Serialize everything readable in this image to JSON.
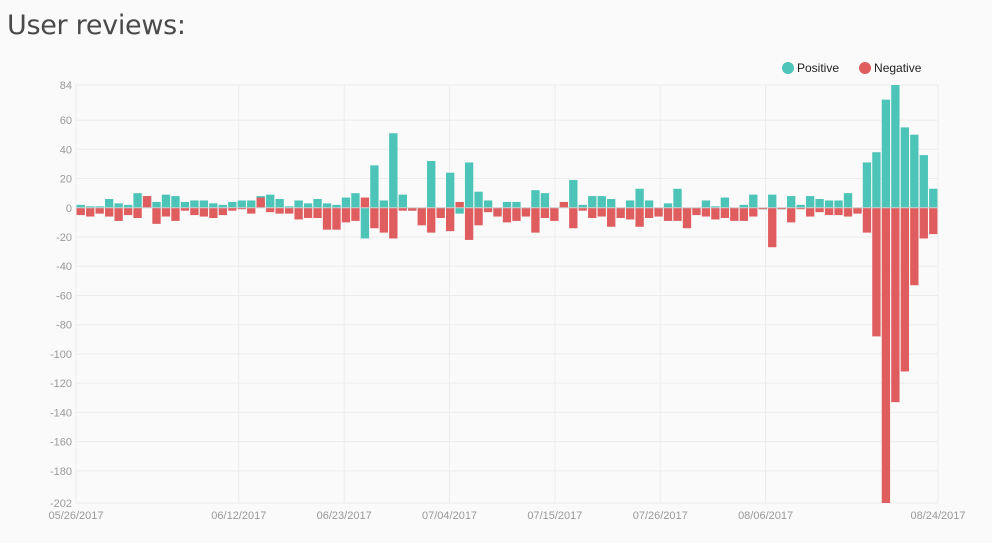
{
  "page": {
    "title": "User reviews:"
  },
  "colors": {
    "positive": "#4cc4b8",
    "negative": "#e05d5f",
    "grid": "#ececec"
  },
  "chart_data": {
    "type": "bar",
    "stacked": true,
    "legend_placement": "top-right",
    "grid": true,
    "ylim": [
      -202,
      84
    ],
    "yticks": [
      84,
      60,
      40,
      20,
      0,
      -20,
      -40,
      -60,
      -80,
      -100,
      -120,
      -140,
      -160,
      -180,
      -202
    ],
    "xlim": [
      "05/26/2017",
      "08/24/2017"
    ],
    "xticks": [
      "05/26/2017",
      "06/12/2017",
      "06/23/2017",
      "07/04/2017",
      "07/15/2017",
      "07/26/2017",
      "08/06/2017",
      "08/24/2017"
    ],
    "x": [
      "05/26/2017",
      "05/27/2017",
      "05/28/2017",
      "05/29/2017",
      "05/30/2017",
      "05/31/2017",
      "06/01/2017",
      "06/02/2017",
      "06/03/2017",
      "06/04/2017",
      "06/05/2017",
      "06/06/2017",
      "06/07/2017",
      "06/08/2017",
      "06/09/2017",
      "06/10/2017",
      "06/11/2017",
      "06/12/2017",
      "06/13/2017",
      "06/14/2017",
      "06/15/2017",
      "06/16/2017",
      "06/17/2017",
      "06/18/2017",
      "06/19/2017",
      "06/20/2017",
      "06/21/2017",
      "06/22/2017",
      "06/23/2017",
      "06/24/2017",
      "06/25/2017",
      "06/26/2017",
      "06/27/2017",
      "06/28/2017",
      "06/29/2017",
      "06/30/2017",
      "07/01/2017",
      "07/02/2017",
      "07/03/2017",
      "07/04/2017",
      "07/05/2017",
      "07/06/2017",
      "07/07/2017",
      "07/08/2017",
      "07/09/2017",
      "07/10/2017",
      "07/11/2017",
      "07/12/2017",
      "07/13/2017",
      "07/14/2017",
      "07/15/2017",
      "07/16/2017",
      "07/17/2017",
      "07/18/2017",
      "07/19/2017",
      "07/20/2017",
      "07/21/2017",
      "07/22/2017",
      "07/23/2017",
      "07/24/2017",
      "07/25/2017",
      "07/26/2017",
      "07/27/2017",
      "07/28/2017",
      "07/29/2017",
      "07/30/2017",
      "07/31/2017",
      "08/01/2017",
      "08/02/2017",
      "08/03/2017",
      "08/04/2017",
      "08/05/2017",
      "08/06/2017",
      "08/07/2017",
      "08/08/2017",
      "08/09/2017",
      "08/10/2017",
      "08/11/2017",
      "08/12/2017",
      "08/13/2017",
      "08/14/2017",
      "08/15/2017",
      "08/16/2017",
      "08/17/2017",
      "08/18/2017",
      "08/19/2017",
      "08/20/2017",
      "08/21/2017",
      "08/22/2017",
      "08/23/2017",
      "08/24/2017"
    ],
    "series": [
      {
        "name": "Positive",
        "values": [
          2,
          1,
          1,
          6,
          3,
          2,
          10,
          8,
          4,
          9,
          8,
          4,
          5,
          5,
          3,
          2,
          4,
          5,
          5,
          8,
          9,
          6,
          1,
          5,
          3,
          6,
          3,
          2,
          7,
          10,
          -21,
          29,
          5,
          51,
          9,
          -2,
          -2,
          32,
          -3,
          24,
          -4,
          31,
          11,
          5,
          -5,
          4,
          4,
          -3,
          12,
          10,
          -2,
          1,
          19,
          2,
          8,
          8,
          6,
          -2,
          5,
          13,
          5,
          -2,
          3,
          13,
          -2,
          -1,
          5,
          1,
          7,
          -2,
          2,
          9,
          -1,
          9,
          -1,
          8,
          2,
          8,
          6,
          5,
          5,
          10,
          -2,
          31,
          38,
          74,
          84,
          55,
          50,
          36,
          13
        ]
      },
      {
        "name": "Negative",
        "values": [
          -5,
          -6,
          -4,
          -6,
          -9,
          -5,
          -7,
          8,
          -11,
          -6,
          -9,
          -2,
          -5,
          -6,
          -7,
          -5,
          -2,
          -1,
          -4,
          7,
          -3,
          -4,
          -4,
          -8,
          -7,
          -7,
          -15,
          -15,
          -10,
          -9,
          7,
          -14,
          -17,
          -21,
          -2,
          -2,
          -12,
          -17,
          -7,
          -16,
          4,
          -22,
          -12,
          -3,
          -6,
          -10,
          -9,
          -6,
          -17,
          -7,
          -9,
          4,
          -14,
          -2,
          -7,
          -6,
          -13,
          -7,
          -8,
          -13,
          -7,
          -6,
          -9,
          -9,
          -14,
          -5,
          -6,
          -8,
          -7,
          -9,
          -9,
          -6,
          -1,
          -27,
          -1,
          -10,
          -1,
          -6,
          -3,
          -5,
          -5,
          -6,
          -4,
          -17,
          -88,
          -202,
          -133,
          -112,
          -53,
          -21,
          -18
        ]
      }
    ]
  }
}
